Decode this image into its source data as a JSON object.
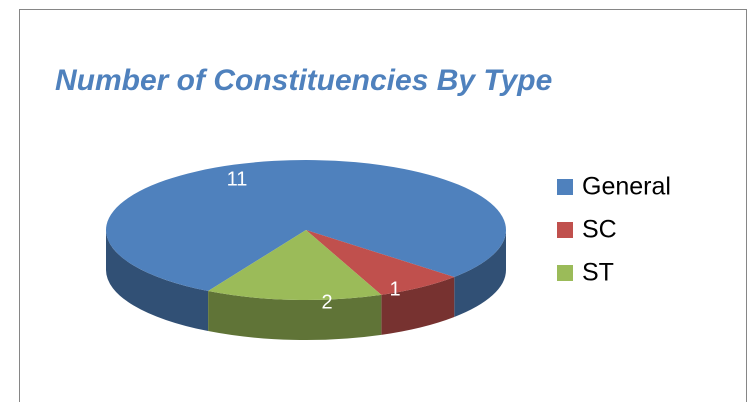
{
  "chart_data": {
    "type": "pie",
    "title": "Number of Constituencies By Type",
    "categories": [
      "General",
      "SC",
      "ST"
    ],
    "values": [
      11,
      1,
      2
    ],
    "colors": [
      "#4f81bd",
      "#c0504d",
      "#9bbb59"
    ],
    "legend": "right"
  }
}
